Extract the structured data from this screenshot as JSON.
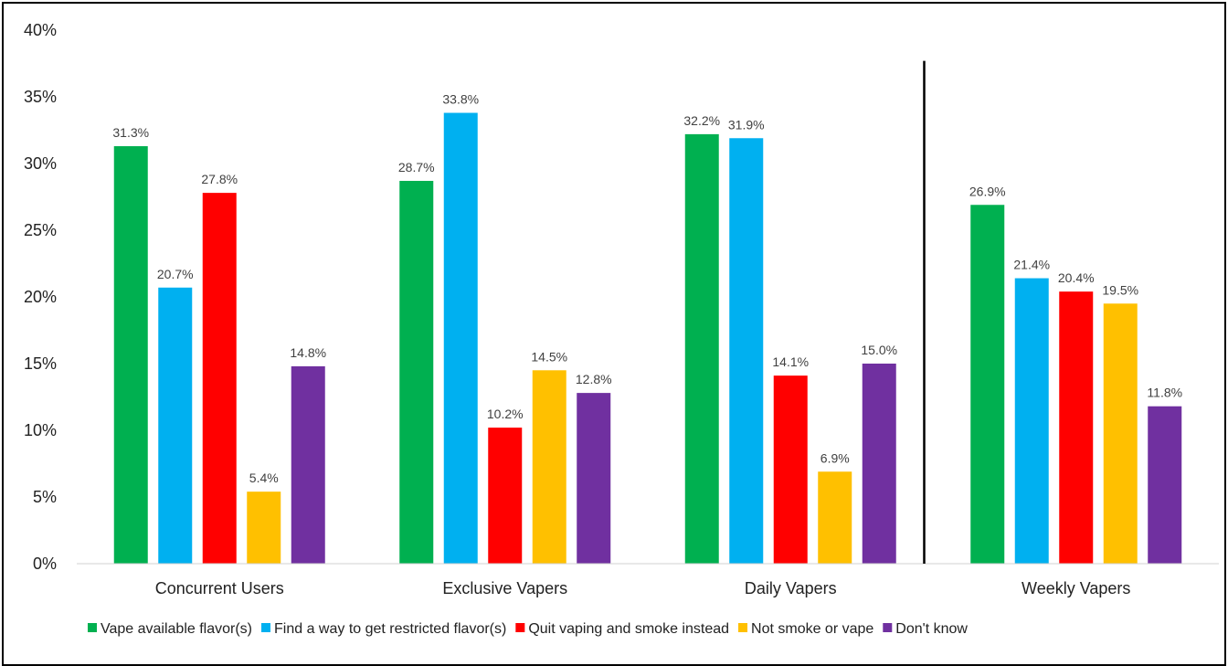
{
  "chart_data": {
    "type": "bar",
    "categories": [
      "Concurrent Users",
      "Exclusive Vapers",
      "Daily Vapers",
      "Weekly Vapers"
    ],
    "series": [
      {
        "name": "Vape available flavor(s)",
        "color": "#00B050",
        "values": [
          31.3,
          28.7,
          32.2,
          26.9
        ],
        "labels": [
          "31.3%",
          "28.7%",
          "32.2%",
          "26.9%"
        ]
      },
      {
        "name": "Find a way to get restricted flavor(s)",
        "color": "#00B0F0",
        "values": [
          20.7,
          33.8,
          31.9,
          21.4
        ],
        "labels": [
          "20.7%",
          "33.8%",
          "31.9%",
          "21.4%"
        ]
      },
      {
        "name": "Quit vaping and smoke instead",
        "color": "#FF0000",
        "values": [
          27.8,
          10.2,
          14.1,
          20.4
        ],
        "labels": [
          "27.8%",
          "10.2%",
          "14.1%",
          "20.4%"
        ]
      },
      {
        "name": "Not smoke or vape",
        "color": "#FFC000",
        "values": [
          5.4,
          14.5,
          6.9,
          19.5
        ],
        "labels": [
          "5.4%",
          "14.5%",
          "6.9%",
          "19.5%"
        ]
      },
      {
        "name": "Don't know",
        "color": "#7030A0",
        "values": [
          14.8,
          12.8,
          15.0,
          11.8
        ],
        "labels": [
          "14.8%",
          "12.8%",
          "15.0%",
          "11.8%"
        ]
      }
    ],
    "yticks": [
      "0%",
      "5%",
      "10%",
      "15%",
      "20%",
      "25%",
      "30%",
      "35%",
      "40%"
    ],
    "ylim": [
      0,
      40
    ],
    "grid": false,
    "legend_position": "bottom",
    "divider_between_groups": [
      2,
      3
    ],
    "title": "",
    "xlabel": "",
    "ylabel": ""
  }
}
